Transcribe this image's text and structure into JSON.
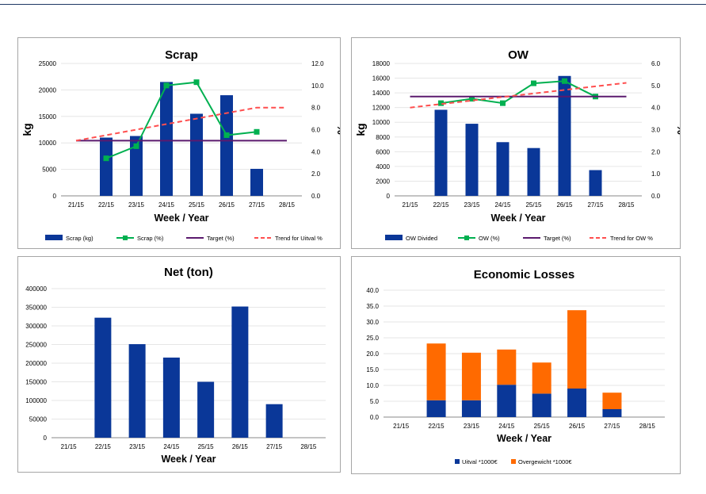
{
  "colors": {
    "bar_blue": "#0a3798",
    "line_green": "#00b050",
    "target_purple": "#5b1a6e",
    "trend_red": "#ff4f4f",
    "orange": "#ff6a00",
    "grid": "#e6e6e6"
  },
  "chart_data": [
    {
      "id": "scrap",
      "type": "bar",
      "title": "Scrap",
      "xlabel": "Week / Year",
      "ylabel": "kg",
      "y2label": "%",
      "categories": [
        "21/15",
        "22/15",
        "23/15",
        "24/15",
        "25/15",
        "26/15",
        "27/15",
        "28/15"
      ],
      "ylim": [
        0,
        25000
      ],
      "yticks": [
        0,
        5000,
        10000,
        15000,
        20000,
        25000
      ],
      "y2lim": [
        0,
        12
      ],
      "y2ticks": [
        "0.0",
        "2.0",
        "4.0",
        "6.0",
        "8.0",
        "10.0",
        "12.0"
      ],
      "series": [
        {
          "name": "Scrap (kg)",
          "kind": "bar",
          "axis": "left",
          "values": [
            null,
            11000,
            11300,
            21500,
            15500,
            19000,
            5100,
            null
          ]
        },
        {
          "name": "Scrap (%)",
          "kind": "line-marker",
          "axis": "right",
          "values": [
            null,
            3.4,
            4.5,
            10.0,
            10.3,
            5.5,
            5.8,
            null
          ]
        },
        {
          "name": "Target (%)",
          "kind": "line",
          "axis": "right",
          "values": [
            5.0,
            5.0,
            5.0,
            5.0,
            5.0,
            5.0,
            5.0,
            5.0
          ]
        },
        {
          "name": "Trend for Uitval %",
          "kind": "dashed",
          "axis": "right",
          "values": [
            5.0,
            5.5,
            6.0,
            6.5,
            7.0,
            7.5,
            8.0,
            8.0
          ]
        }
      ]
    },
    {
      "id": "ow",
      "type": "bar",
      "title": "OW",
      "xlabel": "Week / Year",
      "ylabel": "kg",
      "y2label": "%",
      "categories": [
        "21/15",
        "22/15",
        "23/15",
        "24/15",
        "25/15",
        "26/15",
        "27/15",
        "28/15"
      ],
      "ylim": [
        0,
        18000
      ],
      "yticks": [
        0,
        2000,
        4000,
        6000,
        8000,
        10000,
        12000,
        14000,
        16000,
        18000
      ],
      "y2lim": [
        0,
        6
      ],
      "y2ticks": [
        "0.0",
        "1.0",
        "2.0",
        "3.0",
        "4.0",
        "5.0",
        "6.0"
      ],
      "series": [
        {
          "name": "OW Divided",
          "kind": "bar",
          "axis": "left",
          "values": [
            null,
            11700,
            9800,
            7300,
            6500,
            16300,
            3500,
            null
          ]
        },
        {
          "name": "OW (%)",
          "kind": "line-marker",
          "axis": "right",
          "values": [
            null,
            4.2,
            4.4,
            4.2,
            5.1,
            5.2,
            4.5,
            null
          ]
        },
        {
          "name": "Target (%)",
          "kind": "line",
          "axis": "right",
          "values": [
            4.5,
            4.5,
            4.5,
            4.5,
            4.5,
            4.5,
            4.5,
            4.5
          ]
        },
        {
          "name": "Trend for OW %",
          "kind": "dashed",
          "axis": "right",
          "values": [
            4.0,
            4.16,
            4.32,
            4.48,
            4.64,
            4.8,
            4.96,
            5.12
          ]
        }
      ]
    },
    {
      "id": "net",
      "type": "bar",
      "title": "Net (ton)",
      "xlabel": "Week / Year",
      "categories": [
        "21/15",
        "22/15",
        "23/15",
        "24/15",
        "25/15",
        "26/15",
        "27/15",
        "28/15"
      ],
      "ylim": [
        0,
        400000
      ],
      "yticks": [
        0,
        50000,
        100000,
        150000,
        200000,
        250000,
        300000,
        350000,
        400000
      ],
      "series": [
        {
          "name": "",
          "kind": "bar",
          "values": [
            null,
            322000,
            251000,
            215000,
            150000,
            352000,
            90000,
            null
          ]
        }
      ]
    },
    {
      "id": "econ",
      "type": "bar",
      "title": "Economic Losses",
      "xlabel": "Week / Year",
      "categories": [
        "21/15",
        "22/15",
        "23/15",
        "24/15",
        "25/15",
        "26/15",
        "27/15",
        "28/15"
      ],
      "ylim": [
        0,
        40
      ],
      "yticks": [
        "0.0",
        "5.0",
        "10.0",
        "15.0",
        "20.0",
        "25.0",
        "30.0",
        "35.0",
        "40.0"
      ],
      "stacked": true,
      "series": [
        {
          "name": "Uitval *1000€",
          "kind": "bar",
          "values": [
            null,
            5.3,
            5.3,
            10.2,
            7.4,
            9.0,
            2.5,
            null
          ]
        },
        {
          "name": "Overgewicht *1000€",
          "kind": "bar",
          "values": [
            null,
            17.9,
            15.0,
            11.1,
            9.8,
            24.7,
            5.2,
            null
          ]
        }
      ]
    }
  ]
}
